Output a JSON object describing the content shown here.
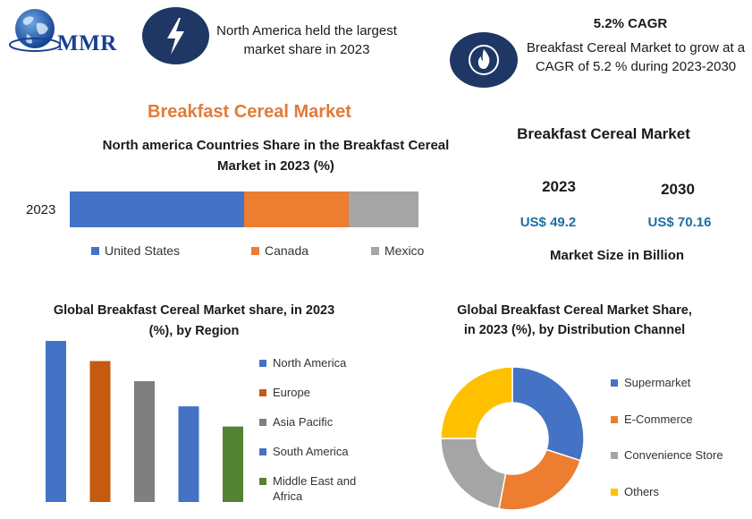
{
  "brand": {
    "logo_text": "MMR",
    "logo_icon": "globe-icon"
  },
  "header": {
    "left_info": {
      "icon": "lightning-bolt-icon",
      "text": "North America held the largest market share in 2023"
    },
    "right_info": {
      "icon": "flame-icon",
      "heading": "5.2% CAGR",
      "text": "Breakfast Cereal Market to grow at a CAGR of 5.2 % during 2023-2030"
    }
  },
  "main_title": "Breakfast Cereal Market",
  "market_size": {
    "title": "Breakfast Cereal Market",
    "years": [
      {
        "year": "2023",
        "value": "US$ 49.2"
      },
      {
        "year": "2030",
        "value": "US$ 70.16"
      }
    ],
    "footer": "Market Size in Billion"
  },
  "colors": {
    "navy": "#1f3764",
    "orange_title": "#e07b39",
    "value_blue": "#1c6ea4"
  },
  "chart_data": [
    {
      "type": "bar",
      "orientation": "horizontal-stacked",
      "title": "North america Countries Share in the  Breakfast Cereal Market in 2023 (%)",
      "categories": [
        "2023"
      ],
      "series": [
        {
          "name": "United States",
          "values": [
            50
          ],
          "color": "#4472c4"
        },
        {
          "name": "Canada",
          "values": [
            30
          ],
          "color": "#ed7d31"
        },
        {
          "name": "Mexico",
          "values": [
            20
          ],
          "color": "#a5a5a5"
        }
      ],
      "xlim": [
        0,
        100
      ],
      "grid": false,
      "legend": "bottom"
    },
    {
      "type": "bar",
      "title": "Global Breakfast Cereal Market share, in 2023 (%), by Region",
      "categories": [
        "North America",
        "Europe",
        "Asia Pacific",
        "South America",
        "Middle East and Africa"
      ],
      "values": [
        32,
        28,
        24,
        19,
        15
      ],
      "colors": [
        "#4472c4",
        "#c55a11",
        "#7f7f7f",
        "#4472c4",
        "#548235"
      ],
      "ylim": [
        0,
        32
      ],
      "grid": false,
      "legend": "right"
    },
    {
      "type": "pie",
      "donut": true,
      "title": "Global Breakfast Cereal Market Share, in 2023 (%), by Distribution Channel",
      "categories": [
        "Supermarket",
        "E-Commerce",
        "Convenience Store",
        "Others"
      ],
      "values": [
        30,
        23,
        22,
        25
      ],
      "colors": [
        "#4472c4",
        "#ed7d31",
        "#a5a5a5",
        "#ffc000"
      ],
      "legend": "right"
    }
  ]
}
